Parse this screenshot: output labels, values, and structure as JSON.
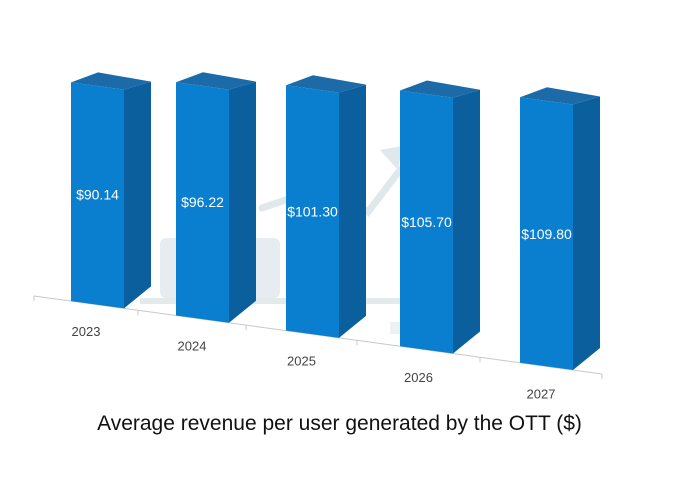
{
  "chart_data": {
    "type": "bar",
    "title": "Average revenue per user generated by the OTT ($)",
    "categories": [
      "2023",
      "2024",
      "2025",
      "2026",
      "2027"
    ],
    "values": [
      90.14,
      96.22,
      101.3,
      105.7,
      109.8
    ],
    "data_labels": [
      "$90.14",
      "$96.22",
      "$101.30",
      "$105.70",
      "$109.80"
    ],
    "style": "3d-column",
    "grid": false,
    "legend": "none",
    "colors": {
      "bar_front": "#0a7fcf",
      "bar_side": "#0a5f9c",
      "bar_top": "#1c6aa8",
      "axis": "#c8c8c8",
      "watermark": "#c9d6dc"
    }
  }
}
